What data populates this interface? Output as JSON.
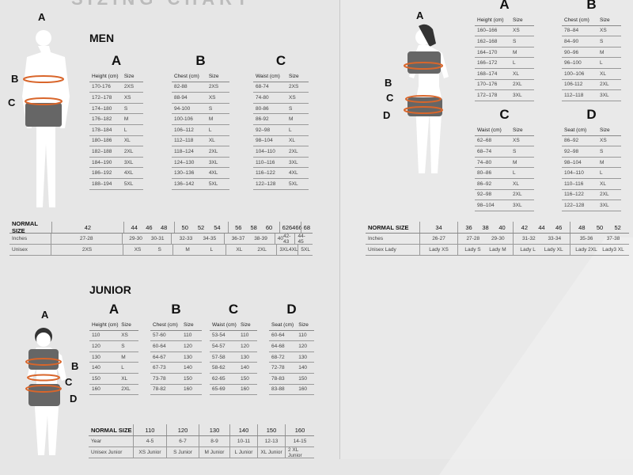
{
  "header": {
    "title_partial": "SIZING CHART"
  },
  "men": {
    "title": "MEN",
    "figure_labels": [
      "A",
      "B",
      "C"
    ],
    "tables": [
      {
        "letter": "A",
        "headers": [
          "Height (cm)",
          "Size"
        ],
        "rows": [
          [
            "170-176",
            "2XS"
          ],
          [
            "172–178",
            "XS"
          ],
          [
            "174–180",
            "S"
          ],
          [
            "176–182",
            "M"
          ],
          [
            "178–184",
            "L"
          ],
          [
            "180–186",
            "XL"
          ],
          [
            "182–188",
            "2XL"
          ],
          [
            "184–190",
            "3XL"
          ],
          [
            "186–192",
            "4XL"
          ],
          [
            "188–194",
            "5XL"
          ]
        ]
      },
      {
        "letter": "B",
        "headers": [
          "Chest (cm)",
          "Size"
        ],
        "rows": [
          [
            "82-88",
            "2XS"
          ],
          [
            "88-94",
            "XS"
          ],
          [
            "94-100",
            "S"
          ],
          [
            "100-106",
            "M"
          ],
          [
            "106–112",
            "L"
          ],
          [
            "112–118",
            "XL"
          ],
          [
            "118–124",
            "2XL"
          ],
          [
            "124–130",
            "3XL"
          ],
          [
            "130–136",
            "4XL"
          ],
          [
            "136–142",
            "5XL"
          ]
        ]
      },
      {
        "letter": "C",
        "headers": [
          "Waist (cm)",
          "Size"
        ],
        "rows": [
          [
            "68-74",
            "2XS"
          ],
          [
            "74-80",
            "XS"
          ],
          [
            "80-86",
            "S"
          ],
          [
            "86-92",
            "M"
          ],
          [
            "92–98",
            "L"
          ],
          [
            "98–104",
            "XL"
          ],
          [
            "104–110",
            "2XL"
          ],
          [
            "110–116",
            "3XL"
          ],
          [
            "116–122",
            "4XL"
          ],
          [
            "122–128",
            "5XL"
          ]
        ]
      }
    ],
    "normal": {
      "labels": [
        "NORMAL SIZE",
        "Inches",
        "Unisex"
      ],
      "groups": [
        {
          "sizes": [
            "42"
          ],
          "inches": [
            "27-28"
          ],
          "unisex": [
            "2XS"
          ]
        },
        {
          "sizes": [
            "44",
            "46",
            "48"
          ],
          "inches": [
            "29-30",
            "30-31"
          ],
          "unisex": [
            "XS",
            "S"
          ]
        },
        {
          "sizes": [
            "50",
            "52",
            "54"
          ],
          "inches": [
            "32-33",
            "34-35"
          ],
          "unisex": [
            "M",
            "L"
          ]
        },
        {
          "sizes": [
            "56",
            "58",
            "60"
          ],
          "inches": [
            "36-37",
            "38-39"
          ],
          "unisex": [
            "XL",
            "2XL"
          ]
        },
        {
          "sizes": [
            "62",
            "64",
            "66"
          ],
          "inches": [
            "40",
            "42-43"
          ],
          "unisex": [
            "3XL",
            "4XL"
          ]
        },
        {
          "sizes": [
            "68"
          ],
          "inches": [
            "44-45"
          ],
          "unisex": [
            "5XL"
          ]
        }
      ]
    }
  },
  "women": {
    "figure_labels": [
      "A",
      "B",
      "C",
      "D"
    ],
    "tables": [
      {
        "letter": "A",
        "headers": [
          "Height (cm)",
          "Size"
        ],
        "rows": [
          [
            "160–166",
            "XS"
          ],
          [
            "162–168",
            "S"
          ],
          [
            "164–170",
            "M"
          ],
          [
            "166–172",
            "L"
          ],
          [
            "168–174",
            "XL"
          ],
          [
            "170–176",
            "2XL"
          ],
          [
            "172–178",
            "3XL"
          ]
        ]
      },
      {
        "letter": "B",
        "headers": [
          "Chest (cm)",
          "Size"
        ],
        "rows": [
          [
            "78–84",
            "XS"
          ],
          [
            "84–90",
            "S"
          ],
          [
            "90–96",
            "M"
          ],
          [
            "96–100",
            "L"
          ],
          [
            "100–106",
            "XL"
          ],
          [
            "106-112",
            "2XL"
          ],
          [
            "112–118",
            "3XL"
          ]
        ]
      },
      {
        "letter": "C",
        "headers": [
          "Waist (cm)",
          "Size"
        ],
        "rows": [
          [
            "62–68",
            "XS"
          ],
          [
            "68–74",
            "S"
          ],
          [
            "74–80",
            "M"
          ],
          [
            "80–86",
            "L"
          ],
          [
            "86–92",
            "XL"
          ],
          [
            "92–98",
            "2XL"
          ],
          [
            "98–104",
            "3XL"
          ]
        ]
      },
      {
        "letter": "D",
        "headers": [
          "Seat (cm)",
          "Size"
        ],
        "rows": [
          [
            "86–92",
            "XS"
          ],
          [
            "92–98",
            "S"
          ],
          [
            "98–104",
            "M"
          ],
          [
            "104–110",
            "L"
          ],
          [
            "110–116",
            "XL"
          ],
          [
            "116–122",
            "2XL"
          ],
          [
            "122–128",
            "3XL"
          ]
        ]
      }
    ],
    "normal": {
      "labels": [
        "NORMAL SIZE",
        "Inches",
        "Unisex Lady"
      ],
      "groups": [
        {
          "sizes": [
            "34"
          ],
          "inches": [
            "26-27"
          ],
          "unisex": [
            "Lady XS"
          ]
        },
        {
          "sizes": [
            "36",
            "38",
            "40"
          ],
          "inches": [
            "27-28",
            "29-30"
          ],
          "unisex": [
            "Lady S",
            "Lady M"
          ]
        },
        {
          "sizes": [
            "42",
            "44",
            "46"
          ],
          "inches": [
            "31-32",
            "33-34"
          ],
          "unisex": [
            "Lady L",
            "Lady XL"
          ]
        },
        {
          "sizes": [
            "48",
            "50",
            "52"
          ],
          "inches": [
            "35-36",
            "37-38"
          ],
          "unisex": [
            "Lady 2XL",
            "Lady3 XL"
          ]
        }
      ]
    }
  },
  "junior": {
    "title": "JUNIOR",
    "figure_labels": [
      "A",
      "B",
      "C",
      "D"
    ],
    "tables": [
      {
        "letter": "A",
        "headers": [
          "Height (cm)",
          "Size"
        ],
        "rows": [
          [
            "110",
            "XS"
          ],
          [
            "120",
            "S"
          ],
          [
            "130",
            "M"
          ],
          [
            "140",
            "L"
          ],
          [
            "150",
            "XL"
          ],
          [
            "160",
            "2XL"
          ]
        ]
      },
      {
        "letter": "B",
        "headers": [
          "Chest (cm)",
          "Size"
        ],
        "rows": [
          [
            "57-60",
            "110"
          ],
          [
            "60-64",
            "120"
          ],
          [
            "64-67",
            "130"
          ],
          [
            "67-73",
            "140"
          ],
          [
            "73-78",
            "150"
          ],
          [
            "78-82",
            "160"
          ]
        ]
      },
      {
        "letter": "C",
        "headers": [
          "Waist (cm)",
          "Size"
        ],
        "rows": [
          [
            "53-54",
            "110"
          ],
          [
            "54-57",
            "120"
          ],
          [
            "57-58",
            "130"
          ],
          [
            "58-62",
            "140"
          ],
          [
            "62-65",
            "150"
          ],
          [
            "65-69",
            "160"
          ]
        ]
      },
      {
        "letter": "D",
        "headers": [
          "Seat (cm)",
          "Size"
        ],
        "rows": [
          [
            "60-64",
            "110"
          ],
          [
            "64-68",
            "120"
          ],
          [
            "68-72",
            "130"
          ],
          [
            "72-78",
            "140"
          ],
          [
            "78-83",
            "150"
          ],
          [
            "83-88",
            "160"
          ]
        ]
      }
    ],
    "normal": {
      "labels": [
        "NORMAL SIZE",
        "Year",
        "Unisex Junior"
      ],
      "groups": [
        {
          "sizes": [
            "110"
          ],
          "inches": [
            "4-5"
          ],
          "unisex": [
            "XS Junior"
          ]
        },
        {
          "sizes": [
            "120"
          ],
          "inches": [
            "6-7"
          ],
          "unisex": [
            "S Junior"
          ]
        },
        {
          "sizes": [
            "130"
          ],
          "inches": [
            "8-9"
          ],
          "unisex": [
            "M Junior"
          ]
        },
        {
          "sizes": [
            "140"
          ],
          "inches": [
            "10-11"
          ],
          "unisex": [
            "L Junior"
          ]
        },
        {
          "sizes": [
            "150"
          ],
          "inches": [
            "12-13"
          ],
          "unisex": [
            "XL Junior"
          ]
        },
        {
          "sizes": [
            "160"
          ],
          "inches": [
            "14-15"
          ],
          "unisex": [
            "2 XL Junior"
          ]
        }
      ]
    }
  },
  "colors": {
    "measure_line": "#d9662b",
    "shorts": "#666666",
    "figure": "#ffffff"
  }
}
